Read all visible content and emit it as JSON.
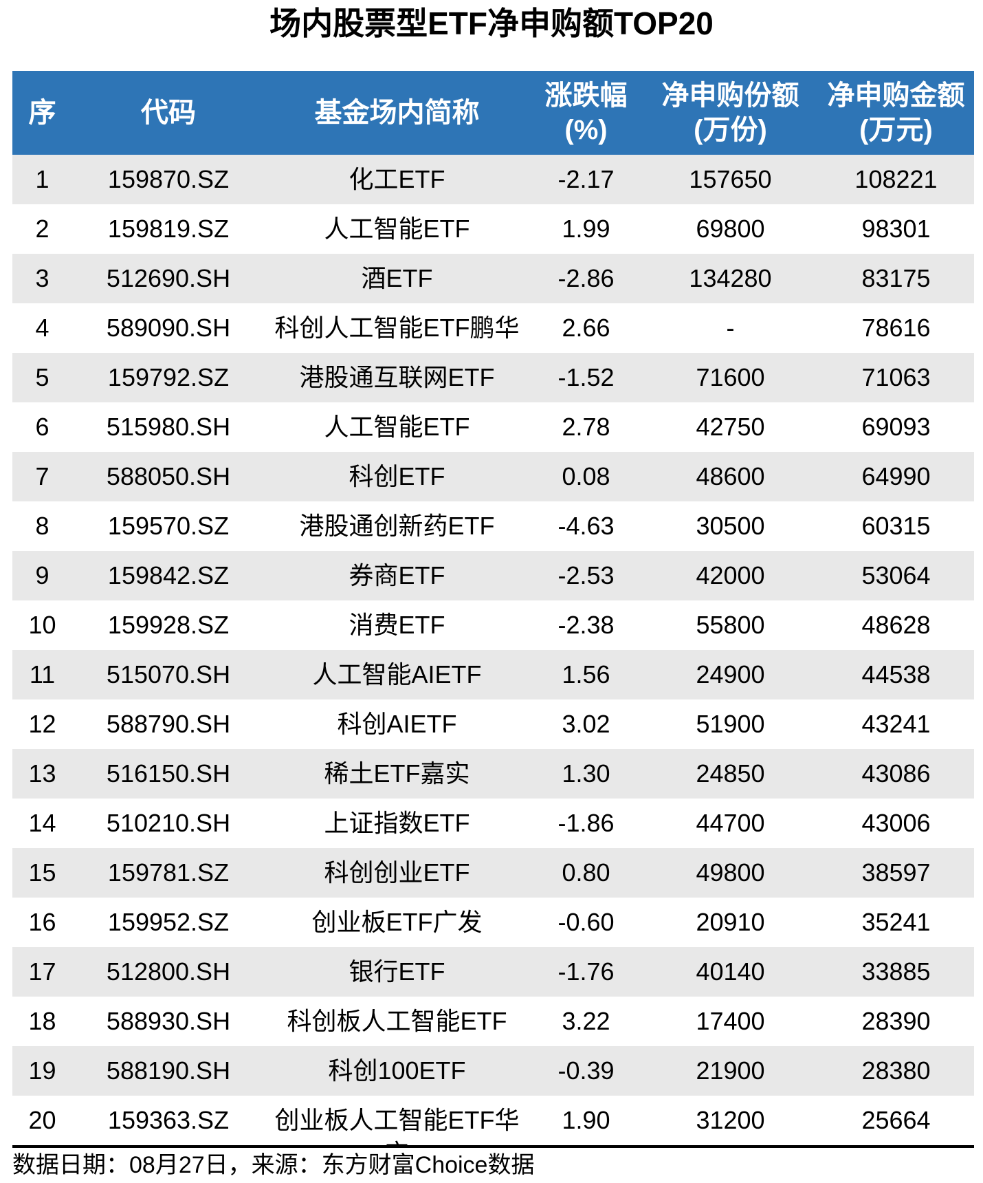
{
  "chart_data": {
    "type": "table",
    "title": "场内股票型ETF净申购额TOP20",
    "columns": [
      {
        "key": "rank",
        "label": "序",
        "sublabel": ""
      },
      {
        "key": "code",
        "label": "代码",
        "sublabel": ""
      },
      {
        "key": "name",
        "label": "基金场内简称",
        "sublabel": ""
      },
      {
        "key": "change",
        "label": "涨跌幅",
        "sublabel": "(%)"
      },
      {
        "key": "shares",
        "label": "净申购份额",
        "sublabel": "(万份)"
      },
      {
        "key": "amount",
        "label": "净申购金额",
        "sublabel": "(万元)"
      }
    ],
    "rows": [
      [
        "1",
        "159870.SZ",
        "化工ETF",
        "-2.17",
        "157650",
        "108221"
      ],
      [
        "2",
        "159819.SZ",
        "人工智能ETF",
        "1.99",
        "69800",
        "98301"
      ],
      [
        "3",
        "512690.SH",
        "酒ETF",
        "-2.86",
        "134280",
        "83175"
      ],
      [
        "4",
        "589090.SH",
        "科创人工智能ETF鹏华",
        "2.66",
        "-",
        "78616"
      ],
      [
        "5",
        "159792.SZ",
        "港股通互联网ETF",
        "-1.52",
        "71600",
        "71063"
      ],
      [
        "6",
        "515980.SH",
        "人工智能ETF",
        "2.78",
        "42750",
        "69093"
      ],
      [
        "7",
        "588050.SH",
        "科创ETF",
        "0.08",
        "48600",
        "64990"
      ],
      [
        "8",
        "159570.SZ",
        "港股通创新药ETF",
        "-4.63",
        "30500",
        "60315"
      ],
      [
        "9",
        "159842.SZ",
        "券商ETF",
        "-2.53",
        "42000",
        "53064"
      ],
      [
        "10",
        "159928.SZ",
        "消费ETF",
        "-2.38",
        "55800",
        "48628"
      ],
      [
        "11",
        "515070.SH",
        "人工智能AIETF",
        "1.56",
        "24900",
        "44538"
      ],
      [
        "12",
        "588790.SH",
        "科创AIETF",
        "3.02",
        "51900",
        "43241"
      ],
      [
        "13",
        "516150.SH",
        "稀土ETF嘉实",
        "1.30",
        "24850",
        "43086"
      ],
      [
        "14",
        "510210.SH",
        "上证指数ETF",
        "-1.86",
        "44700",
        "43006"
      ],
      [
        "15",
        "159781.SZ",
        "科创创业ETF",
        "0.80",
        "49800",
        "38597"
      ],
      [
        "16",
        "159952.SZ",
        "创业板ETF广发",
        "-0.60",
        "20910",
        "35241"
      ],
      [
        "17",
        "512800.SH",
        "银行ETF",
        "-1.76",
        "40140",
        "33885"
      ],
      [
        "18",
        "588930.SH",
        "科创板人工智能ETF",
        "3.22",
        "17400",
        "28390"
      ],
      [
        "19",
        "588190.SH",
        "科创100ETF",
        "-0.39",
        "21900",
        "28380"
      ],
      [
        "20",
        "159363.SZ",
        "创业板人工智能ETF华宝",
        "1.90",
        "31200",
        "25664"
      ]
    ],
    "source_note": "数据日期：08月27日，来源：东方财富Choice数据",
    "layout": {
      "zebra_striping": true,
      "header_lines": 2,
      "column_alignment": "center"
    }
  },
  "colors": {
    "header_bg": "#2E75B6",
    "header_text": "#FFFFFF",
    "row_alt_bg": "#E8E8E8",
    "row_bg": "#FFFFFF",
    "body_text": "#000000",
    "bottom_rule": "#000000"
  }
}
